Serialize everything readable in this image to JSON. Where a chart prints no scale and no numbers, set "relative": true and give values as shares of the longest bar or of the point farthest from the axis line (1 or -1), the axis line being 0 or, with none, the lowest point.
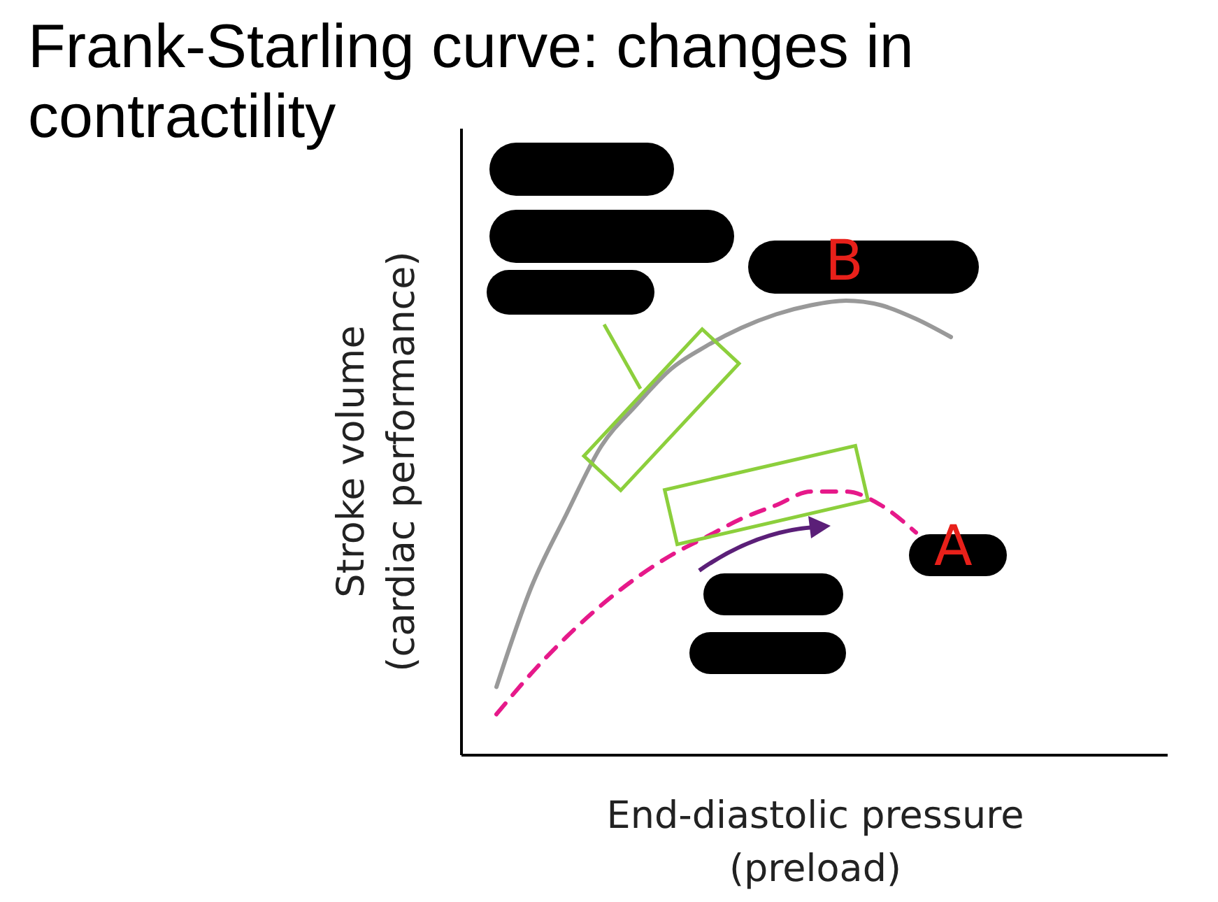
{
  "chart_data": {
    "type": "line",
    "title": "Frank-Starling curve: changes in contractility",
    "xlabel": "End-diastolic pressure\n(preload)",
    "ylabel": "Stroke volume\n(cardiac performance)",
    "relative": true,
    "categories": [
      null,
      null,
      null,
      null,
      null,
      null,
      null,
      null,
      null,
      null,
      null,
      null,
      null,
      null,
      null,
      null,
      null,
      null,
      null,
      null
    ],
    "series": [
      {
        "color": "#999999",
        "line_style": "solid",
        "values": [
          0.15,
          0.37,
          0.53,
          0.68,
          0.77,
          0.85,
          0.9,
          0.94,
          0.97,
          0.99,
          1,
          0.99,
          0.96,
          0.92,
          null,
          null,
          null,
          null,
          null,
          null
        ]
      },
      {
        "color": "#e6198a",
        "line_style": "dashed",
        "values": [
          0.09,
          0.18,
          0.26,
          0.33,
          0.39,
          0.44,
          0.48,
          0.52,
          0.55,
          0.58,
          0.58,
          0.55,
          0.49,
          null,
          null,
          null,
          null,
          null,
          null,
          null
        ]
      }
    ],
    "annotations": [
      "B",
      "A"
    ]
  }
}
